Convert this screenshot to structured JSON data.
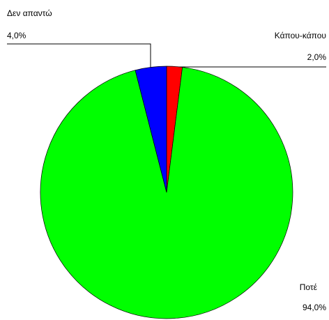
{
  "chart_data": {
    "type": "pie",
    "categories": [
      "Κάπου-κάπου",
      "Ποτέ",
      "Δεν απαντώ"
    ],
    "values": [
      2.0,
      94.0,
      4.0
    ],
    "value_labels": [
      "2,0%",
      "94,0%",
      "4,0%"
    ],
    "colors": [
      "#ff0000",
      "#00ff00",
      "#0000ff"
    ]
  }
}
